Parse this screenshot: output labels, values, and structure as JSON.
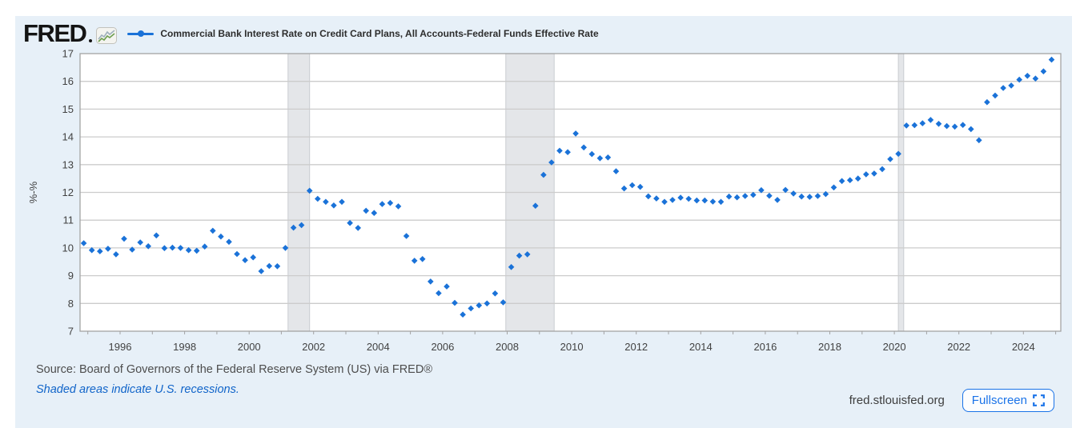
{
  "branding": {
    "logo_text": "FRED"
  },
  "header": {
    "series_label": "Commercial Bank Interest Rate on Credit Card Plans, All Accounts-Federal Funds Effective Rate"
  },
  "footer": {
    "source_line": "Source: Board of Governors of the Federal Reserve System (US) via FRED®",
    "recession_note": "Shaded areas indicate U.S. recessions.",
    "site_label": "fred.stlouisfed.org",
    "fullscreen_label": "Fullscreen"
  },
  "ui": {
    "accent_blue": "#1a73e8",
    "panel_bg": "#e7f0f8",
    "note_blue": "#1064c9"
  },
  "chart_data": {
    "type": "scatter",
    "title": "Commercial Bank Interest Rate on Credit Card Plans, All Accounts-Federal Funds Effective Rate",
    "xlabel": "",
    "ylabel": "%-%",
    "ylim": [
      7,
      17
    ],
    "xlim": [
      1994.76,
      2025.16
    ],
    "y_ticks": [
      7,
      8,
      9,
      10,
      11,
      12,
      13,
      14,
      15,
      16,
      17
    ],
    "x_ticks": [
      1996,
      1998,
      2000,
      2002,
      2004,
      2006,
      2008,
      2010,
      2012,
      2014,
      2016,
      2018,
      2020,
      2022,
      2024
    ],
    "grid": true,
    "legend_position": "top",
    "recessions": [
      {
        "start": "2001-03",
        "end": "2001-11"
      },
      {
        "start": "2007-12",
        "end": "2009-06"
      },
      {
        "start": "2020-02",
        "end": "2020-04"
      }
    ],
    "colors": {
      "point": "#1a72d8",
      "grid": "#cccccc",
      "frame": "#a3a3a3",
      "recession_fill": "#e4e6e9",
      "recession_edge": "#c9ccd0"
    },
    "series": [
      {
        "name": "Commercial Bank Interest Rate on Credit Card Plans, All Accounts-Federal Funds Effective Rate",
        "marker": "diamond",
        "color": "#1a72d8",
        "dates": [
          "1994-11",
          "1995-02",
          "1995-05",
          "1995-08",
          "1995-11",
          "1996-02",
          "1996-05",
          "1996-08",
          "1996-11",
          "1997-02",
          "1997-05",
          "1997-08",
          "1997-11",
          "1998-02",
          "1998-05",
          "1998-08",
          "1998-11",
          "1999-02",
          "1999-05",
          "1999-08",
          "1999-11",
          "2000-02",
          "2000-05",
          "2000-08",
          "2000-11",
          "2001-02",
          "2001-05",
          "2001-08",
          "2001-11",
          "2002-02",
          "2002-05",
          "2002-08",
          "2002-11",
          "2003-02",
          "2003-05",
          "2003-08",
          "2003-11",
          "2004-02",
          "2004-05",
          "2004-08",
          "2004-11",
          "2005-02",
          "2005-05",
          "2005-08",
          "2005-11",
          "2006-02",
          "2006-05",
          "2006-08",
          "2006-11",
          "2007-02",
          "2007-05",
          "2007-08",
          "2007-11",
          "2008-02",
          "2008-05",
          "2008-08",
          "2008-11",
          "2009-02",
          "2009-05",
          "2009-08",
          "2009-11",
          "2010-02",
          "2010-05",
          "2010-08",
          "2010-11",
          "2011-02",
          "2011-05",
          "2011-08",
          "2011-11",
          "2012-02",
          "2012-05",
          "2012-08",
          "2012-11",
          "2013-02",
          "2013-05",
          "2013-08",
          "2013-11",
          "2014-02",
          "2014-05",
          "2014-08",
          "2014-11",
          "2015-02",
          "2015-05",
          "2015-08",
          "2015-11",
          "2016-02",
          "2016-05",
          "2016-08",
          "2016-11",
          "2017-02",
          "2017-05",
          "2017-08",
          "2017-11",
          "2018-02",
          "2018-05",
          "2018-08",
          "2018-11",
          "2019-02",
          "2019-05",
          "2019-08",
          "2019-11",
          "2020-02",
          "2020-05",
          "2020-08",
          "2020-11",
          "2021-02",
          "2021-05",
          "2021-08",
          "2021-11",
          "2022-02",
          "2022-05",
          "2022-08",
          "2022-11",
          "2023-02",
          "2023-05",
          "2023-08",
          "2023-11",
          "2024-02",
          "2024-05",
          "2024-08",
          "2024-11"
        ],
        "values": [
          10.17,
          9.92,
          9.88,
          9.97,
          9.77,
          10.33,
          9.94,
          10.2,
          10.06,
          10.45,
          9.99,
          10.01,
          10.0,
          9.92,
          9.9,
          10.05,
          10.62,
          10.41,
          10.22,
          9.78,
          9.56,
          9.66,
          9.16,
          9.35,
          9.34,
          10.0,
          10.73,
          10.82,
          12.06,
          11.77,
          11.66,
          11.53,
          11.66,
          10.9,
          10.72,
          11.34,
          11.26,
          11.58,
          11.62,
          11.5,
          10.43,
          9.54,
          9.6,
          8.79,
          8.37,
          8.61,
          8.02,
          7.6,
          7.82,
          7.93,
          8.0,
          8.36,
          8.04,
          9.31,
          9.72,
          9.77,
          11.52,
          12.63,
          13.08,
          13.5,
          13.45,
          14.12,
          13.62,
          13.38,
          13.23,
          13.26,
          12.76,
          12.14,
          12.26,
          12.2,
          11.86,
          11.78,
          11.66,
          11.73,
          11.81,
          11.77,
          11.71,
          11.71,
          11.67,
          11.66,
          11.85,
          11.82,
          11.87,
          11.91,
          12.08,
          11.88,
          11.73,
          12.09,
          11.96,
          11.85,
          11.84,
          11.87,
          11.94,
          12.18,
          12.41,
          12.44,
          12.5,
          12.65,
          12.68,
          12.84,
          13.2,
          13.39,
          14.41,
          14.42,
          14.49,
          14.61,
          14.47,
          14.39,
          14.37,
          14.43,
          14.28,
          13.88,
          15.25,
          15.49,
          15.76,
          15.85,
          16.06,
          16.2,
          16.1,
          16.36,
          16.78
        ]
      }
    ]
  }
}
